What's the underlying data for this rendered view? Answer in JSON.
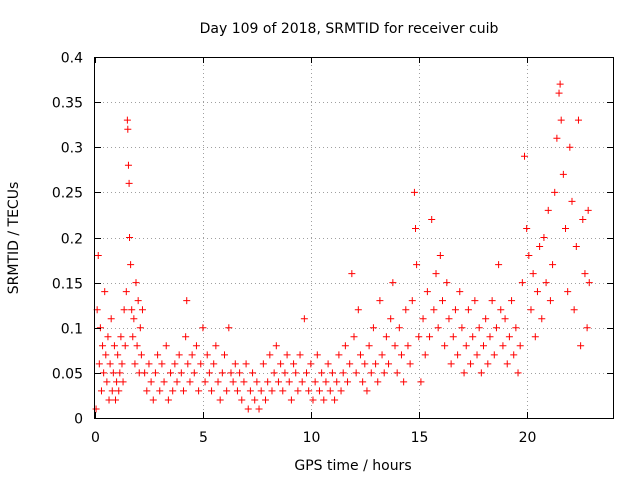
{
  "chart_data": {
    "type": "scatter",
    "title": "Day 109 of 2018, SRMTID for receiver cuib",
    "xlabel": "GPS time / hours",
    "ylabel": "SRMTID / TECUs",
    "xlim": [
      0,
      24
    ],
    "ylim": [
      0,
      0.4
    ],
    "xticks": [
      0,
      5,
      10,
      15,
      20
    ],
    "xtick_labels": [
      "0",
      "5",
      "10",
      "15",
      "20"
    ],
    "yticks": [
      0,
      0.05,
      0.1,
      0.15,
      0.2,
      0.25,
      0.3,
      0.35,
      0.4
    ],
    "ytick_labels": [
      "0",
      "0.05",
      "0.1",
      "0.15",
      "0.2",
      "0.25",
      "0.3",
      "0.35",
      "0.4"
    ],
    "grid": true,
    "marker": "+",
    "marker_color": "#ff0000",
    "series": [
      {
        "name": "SRMTID",
        "points": [
          [
            0.05,
            0.01
          ],
          [
            0.1,
            0.12
          ],
          [
            0.15,
            0.18
          ],
          [
            0.2,
            0.06
          ],
          [
            0.25,
            0.1
          ],
          [
            0.3,
            0.03
          ],
          [
            0.35,
            0.08
          ],
          [
            0.4,
            0.05
          ],
          [
            0.45,
            0.14
          ],
          [
            0.5,
            0.07
          ],
          [
            0.55,
            0.04
          ],
          [
            0.6,
            0.09
          ],
          [
            0.65,
            0.02
          ],
          [
            0.7,
            0.06
          ],
          [
            0.75,
            0.11
          ],
          [
            0.8,
            0.03
          ],
          [
            0.85,
            0.05
          ],
          [
            0.9,
            0.08
          ],
          [
            0.95,
            0.02
          ],
          [
            1.0,
            0.04
          ],
          [
            1.05,
            0.07
          ],
          [
            1.1,
            0.03
          ],
          [
            1.15,
            0.05
          ],
          [
            1.2,
            0.09
          ],
          [
            1.25,
            0.06
          ],
          [
            1.3,
            0.04
          ],
          [
            1.35,
            0.12
          ],
          [
            1.4,
            0.08
          ],
          [
            1.45,
            0.14
          ],
          [
            1.5,
            0.33
          ],
          [
            1.52,
            0.32
          ],
          [
            1.55,
            0.28
          ],
          [
            1.58,
            0.26
          ],
          [
            1.6,
            0.2
          ],
          [
            1.65,
            0.17
          ],
          [
            1.7,
            0.12
          ],
          [
            1.75,
            0.09
          ],
          [
            1.8,
            0.11
          ],
          [
            1.85,
            0.06
          ],
          [
            1.9,
            0.15
          ],
          [
            1.95,
            0.08
          ],
          [
            2.0,
            0.13
          ],
          [
            2.05,
            0.05
          ],
          [
            2.1,
            0.1
          ],
          [
            2.15,
            0.07
          ],
          [
            2.2,
            0.12
          ],
          [
            2.3,
            0.05
          ],
          [
            2.4,
            0.03
          ],
          [
            2.5,
            0.06
          ],
          [
            2.6,
            0.04
          ],
          [
            2.7,
            0.02
          ],
          [
            2.8,
            0.05
          ],
          [
            2.9,
            0.07
          ],
          [
            3.0,
            0.03
          ],
          [
            3.1,
            0.06
          ],
          [
            3.2,
            0.04
          ],
          [
            3.3,
            0.08
          ],
          [
            3.4,
            0.02
          ],
          [
            3.5,
            0.05
          ],
          [
            3.6,
            0.03
          ],
          [
            3.7,
            0.06
          ],
          [
            3.8,
            0.04
          ],
          [
            3.9,
            0.07
          ],
          [
            4.0,
            0.05
          ],
          [
            4.1,
            0.03
          ],
          [
            4.2,
            0.09
          ],
          [
            4.25,
            0.13
          ],
          [
            4.3,
            0.06
          ],
          [
            4.4,
            0.04
          ],
          [
            4.5,
            0.07
          ],
          [
            4.6,
            0.05
          ],
          [
            4.7,
            0.08
          ],
          [
            4.8,
            0.03
          ],
          [
            4.9,
            0.06
          ],
          [
            5.0,
            0.1
          ],
          [
            5.1,
            0.04
          ],
          [
            5.2,
            0.07
          ],
          [
            5.3,
            0.05
          ],
          [
            5.4,
            0.03
          ],
          [
            5.5,
            0.06
          ],
          [
            5.6,
            0.08
          ],
          [
            5.7,
            0.04
          ],
          [
            5.8,
            0.02
          ],
          [
            5.9,
            0.05
          ],
          [
            6.0,
            0.07
          ],
          [
            6.1,
            0.03
          ],
          [
            6.2,
            0.1
          ],
          [
            6.3,
            0.05
          ],
          [
            6.4,
            0.04
          ],
          [
            6.5,
            0.06
          ],
          [
            6.6,
            0.03
          ],
          [
            6.7,
            0.05
          ],
          [
            6.8,
            0.02
          ],
          [
            6.9,
            0.04
          ],
          [
            7.0,
            0.06
          ],
          [
            7.1,
            0.01
          ],
          [
            7.2,
            0.03
          ],
          [
            7.3,
            0.05
          ],
          [
            7.4,
            0.02
          ],
          [
            7.5,
            0.04
          ],
          [
            7.6,
            0.01
          ],
          [
            7.7,
            0.03
          ],
          [
            7.8,
            0.06
          ],
          [
            7.9,
            0.02
          ],
          [
            8.0,
            0.04
          ],
          [
            8.1,
            0.07
          ],
          [
            8.2,
            0.03
          ],
          [
            8.3,
            0.05
          ],
          [
            8.4,
            0.08
          ],
          [
            8.5,
            0.04
          ],
          [
            8.6,
            0.06
          ],
          [
            8.7,
            0.03
          ],
          [
            8.8,
            0.05
          ],
          [
            8.9,
            0.07
          ],
          [
            9.0,
            0.04
          ],
          [
            9.1,
            0.02
          ],
          [
            9.2,
            0.06
          ],
          [
            9.3,
            0.05
          ],
          [
            9.4,
            0.03
          ],
          [
            9.5,
            0.07
          ],
          [
            9.6,
            0.04
          ],
          [
            9.7,
            0.11
          ],
          [
            9.8,
            0.05
          ],
          [
            9.9,
            0.03
          ],
          [
            10.0,
            0.06
          ],
          [
            10.1,
            0.02
          ],
          [
            10.2,
            0.04
          ],
          [
            10.3,
            0.07
          ],
          [
            10.4,
            0.03
          ],
          [
            10.5,
            0.05
          ],
          [
            10.6,
            0.02
          ],
          [
            10.7,
            0.04
          ],
          [
            10.8,
            0.06
          ],
          [
            10.9,
            0.03
          ],
          [
            11.0,
            0.05
          ],
          [
            11.1,
            0.02
          ],
          [
            11.2,
            0.04
          ],
          [
            11.3,
            0.07
          ],
          [
            11.4,
            0.03
          ],
          [
            11.5,
            0.05
          ],
          [
            11.6,
            0.08
          ],
          [
            11.7,
            0.04
          ],
          [
            11.8,
            0.06
          ],
          [
            11.9,
            0.16
          ],
          [
            12.0,
            0.09
          ],
          [
            12.1,
            0.05
          ],
          [
            12.2,
            0.12
          ],
          [
            12.3,
            0.07
          ],
          [
            12.4,
            0.04
          ],
          [
            12.5,
            0.06
          ],
          [
            12.6,
            0.03
          ],
          [
            12.7,
            0.08
          ],
          [
            12.8,
            0.05
          ],
          [
            12.9,
            0.1
          ],
          [
            13.0,
            0.06
          ],
          [
            13.1,
            0.04
          ],
          [
            13.2,
            0.13
          ],
          [
            13.3,
            0.07
          ],
          [
            13.4,
            0.05
          ],
          [
            13.5,
            0.09
          ],
          [
            13.6,
            0.06
          ],
          [
            13.7,
            0.11
          ],
          [
            13.8,
            0.15
          ],
          [
            13.9,
            0.08
          ],
          [
            14.0,
            0.05
          ],
          [
            14.1,
            0.1
          ],
          [
            14.2,
            0.07
          ],
          [
            14.3,
            0.04
          ],
          [
            14.4,
            0.12
          ],
          [
            14.5,
            0.08
          ],
          [
            14.6,
            0.06
          ],
          [
            14.7,
            0.13
          ],
          [
            14.8,
            0.25
          ],
          [
            14.85,
            0.21
          ],
          [
            14.9,
            0.17
          ],
          [
            15.0,
            0.09
          ],
          [
            15.1,
            0.04
          ],
          [
            15.2,
            0.11
          ],
          [
            15.3,
            0.07
          ],
          [
            15.4,
            0.14
          ],
          [
            15.5,
            0.09
          ],
          [
            15.6,
            0.22
          ],
          [
            15.7,
            0.12
          ],
          [
            15.8,
            0.16
          ],
          [
            15.9,
            0.1
          ],
          [
            16.0,
            0.18
          ],
          [
            16.1,
            0.13
          ],
          [
            16.2,
            0.08
          ],
          [
            16.3,
            0.15
          ],
          [
            16.4,
            0.11
          ],
          [
            16.5,
            0.06
          ],
          [
            16.6,
            0.09
          ],
          [
            16.7,
            0.12
          ],
          [
            16.8,
            0.07
          ],
          [
            16.9,
            0.14
          ],
          [
            17.0,
            0.1
          ],
          [
            17.1,
            0.05
          ],
          [
            17.2,
            0.08
          ],
          [
            17.3,
            0.12
          ],
          [
            17.4,
            0.06
          ],
          [
            17.5,
            0.09
          ],
          [
            17.6,
            0.13
          ],
          [
            17.7,
            0.07
          ],
          [
            17.8,
            0.1
          ],
          [
            17.9,
            0.05
          ],
          [
            18.0,
            0.08
          ],
          [
            18.1,
            0.11
          ],
          [
            18.2,
            0.06
          ],
          [
            18.3,
            0.09
          ],
          [
            18.4,
            0.13
          ],
          [
            18.5,
            0.07
          ],
          [
            18.6,
            0.1
          ],
          [
            18.7,
            0.17
          ],
          [
            18.8,
            0.12
          ],
          [
            18.9,
            0.08
          ],
          [
            19.0,
            0.11
          ],
          [
            19.1,
            0.06
          ],
          [
            19.2,
            0.09
          ],
          [
            19.3,
            0.13
          ],
          [
            19.4,
            0.07
          ],
          [
            19.5,
            0.1
          ],
          [
            19.6,
            0.05
          ],
          [
            19.7,
            0.08
          ],
          [
            19.8,
            0.15
          ],
          [
            19.9,
            0.29
          ],
          [
            20.0,
            0.21
          ],
          [
            20.1,
            0.18
          ],
          [
            20.2,
            0.12
          ],
          [
            20.3,
            0.16
          ],
          [
            20.4,
            0.09
          ],
          [
            20.5,
            0.14
          ],
          [
            20.6,
            0.19
          ],
          [
            20.7,
            0.11
          ],
          [
            20.8,
            0.2
          ],
          [
            20.9,
            0.15
          ],
          [
            21.0,
            0.23
          ],
          [
            21.1,
            0.13
          ],
          [
            21.2,
            0.17
          ],
          [
            21.3,
            0.25
          ],
          [
            21.4,
            0.31
          ],
          [
            21.5,
            0.36
          ],
          [
            21.55,
            0.37
          ],
          [
            21.6,
            0.33
          ],
          [
            21.7,
            0.27
          ],
          [
            21.8,
            0.21
          ],
          [
            21.9,
            0.14
          ],
          [
            22.0,
            0.3
          ],
          [
            22.1,
            0.24
          ],
          [
            22.2,
            0.12
          ],
          [
            22.3,
            0.19
          ],
          [
            22.4,
            0.33
          ],
          [
            22.5,
            0.08
          ],
          [
            22.6,
            0.22
          ],
          [
            22.7,
            0.16
          ],
          [
            22.8,
            0.1
          ],
          [
            22.85,
            0.23
          ],
          [
            22.9,
            0.15
          ]
        ]
      }
    ]
  }
}
